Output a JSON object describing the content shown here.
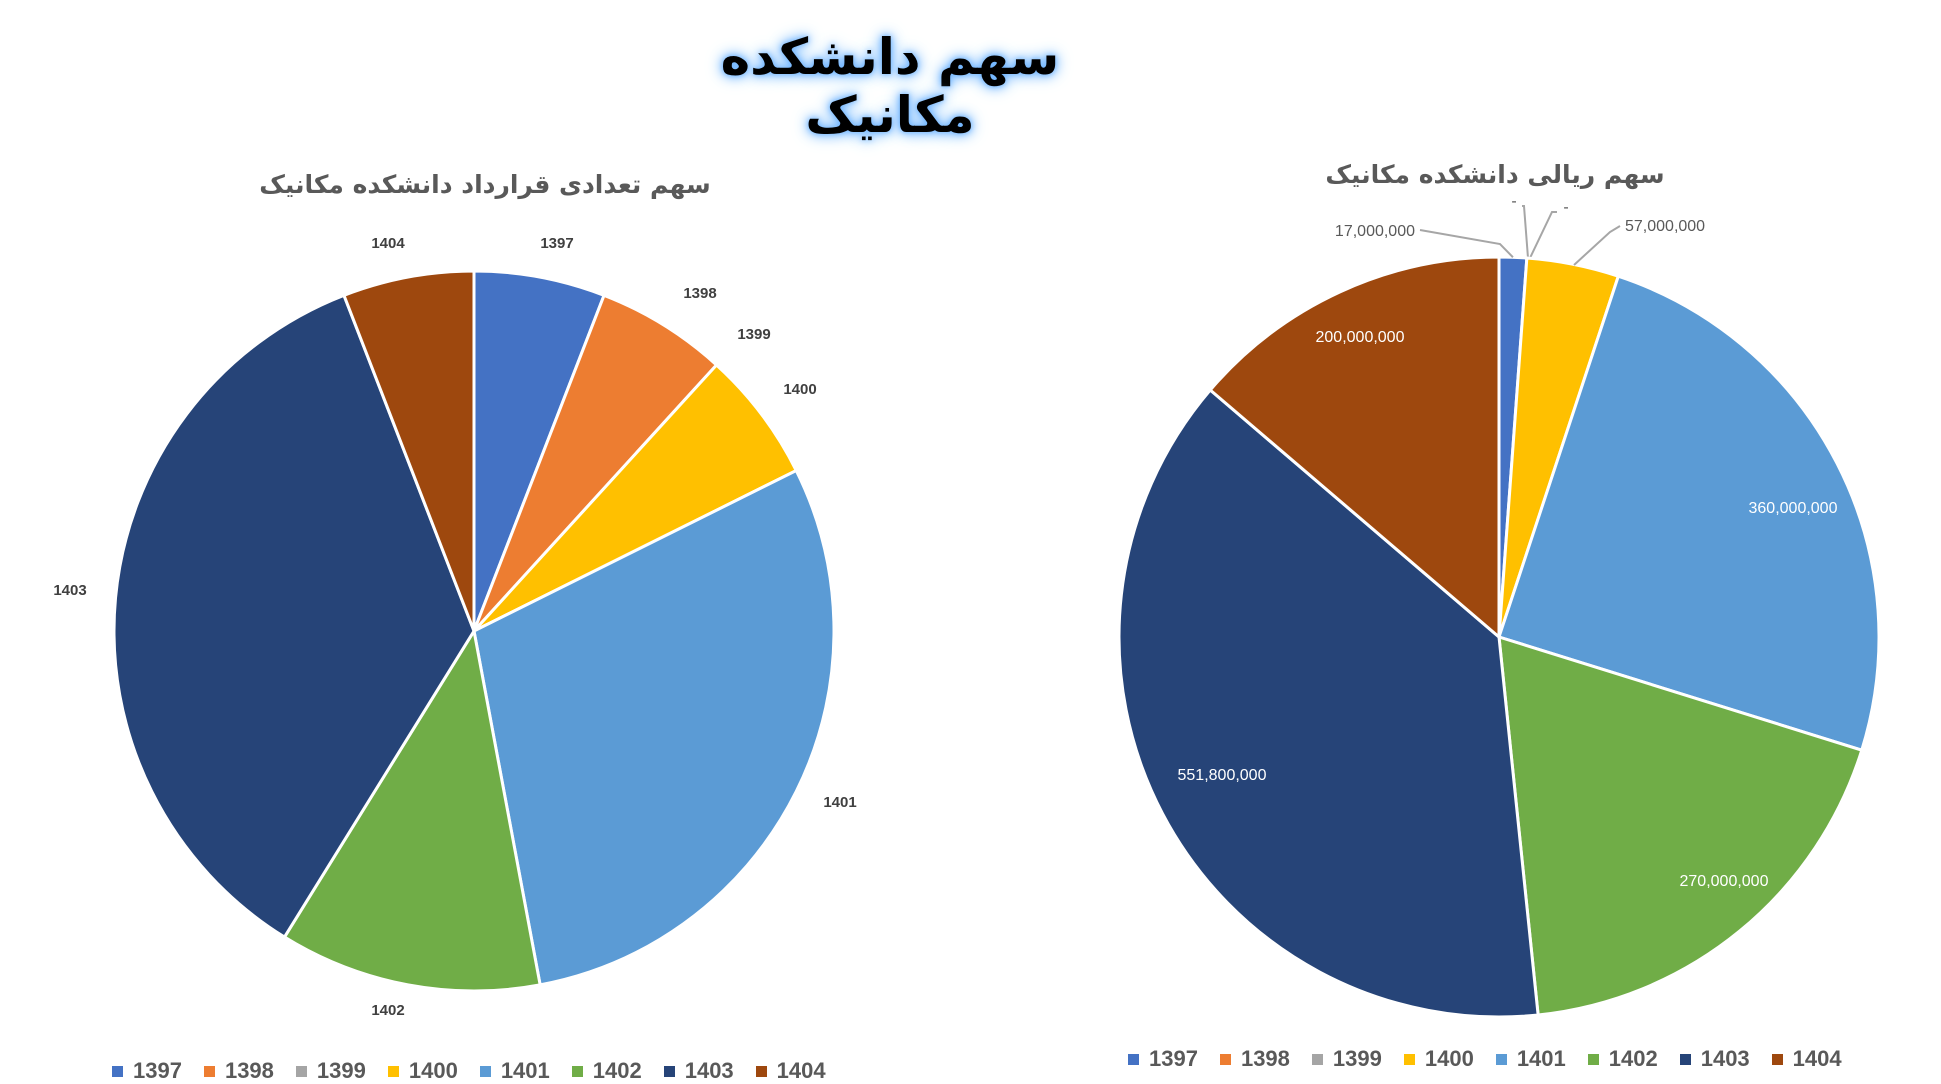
{
  "page_title": "سهم دانشکده مکانیک",
  "colors": {
    "1397": "#4472C4",
    "1398": "#ED7D31",
    "1399": "#A5A5A5",
    "1400": "#FFC000",
    "1401": "#5B9BD5",
    "1402": "#70AD47",
    "1403": "#264478",
    "1404": "#9E480E"
  },
  "chart_data": [
    {
      "type": "pie",
      "title": "سهم تعدادی قرارداد دانشکده مکانیک",
      "categories": [
        "1397",
        "1398",
        "1399",
        "1400",
        "1401",
        "1402",
        "1403",
        "1404"
      ],
      "values": [
        1,
        1,
        0,
        1,
        5,
        2,
        6,
        1
      ],
      "data_labels": [
        "1397",
        "1398",
        "1399",
        "1400",
        "1401",
        "1402",
        "1403",
        "1404"
      ],
      "legend": {
        "position": "bottom",
        "items": [
          "1397",
          "1398",
          "1399",
          "1400",
          "1401",
          "1402",
          "1403",
          "1404"
        ]
      }
    },
    {
      "type": "pie",
      "title": "سهم ریالی دانشکده مکانیک",
      "categories": [
        "1397",
        "1398",
        "1399",
        "1400",
        "1401",
        "1402",
        "1403",
        "1404"
      ],
      "values": [
        17000000,
        0,
        0,
        57000000,
        360000000,
        270000000,
        551800000,
        200000000
      ],
      "data_labels": [
        "17,000,000",
        "-",
        "-",
        "57,000,000",
        "360,000,000",
        "270,000,000",
        "551,800,000",
        "200,000,000"
      ],
      "legend": {
        "position": "bottom",
        "items": [
          "1397",
          "1398",
          "1399",
          "1400",
          "1401",
          "1402",
          "1403",
          "1404"
        ]
      }
    }
  ]
}
